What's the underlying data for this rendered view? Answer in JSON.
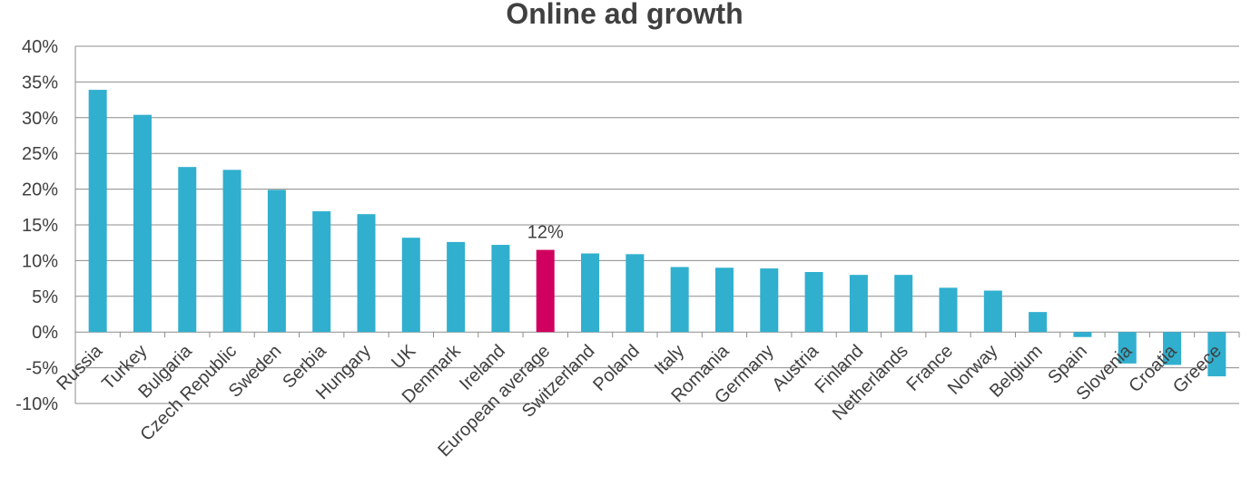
{
  "chart_data": {
    "type": "bar",
    "title": "Online ad growth",
    "xlabel": "",
    "ylabel": "",
    "ylim": [
      -10,
      40
    ],
    "yticks": [
      "-10%",
      "-5%",
      "0%",
      "5%",
      "10%",
      "15%",
      "20%",
      "25%",
      "30%",
      "35%",
      "40%"
    ],
    "grid": true,
    "categories": [
      "Russia",
      "Turkey",
      "Bulgaria",
      "Czech Republic",
      "Sweden",
      "Serbia",
      "Hungary",
      "UK",
      "Denmark",
      "Ireland",
      "European average",
      "Switzerland",
      "Poland",
      "Italy",
      "Romania",
      "Germany",
      "Austria",
      "Finland",
      "Netherlands",
      "France",
      "Norway",
      "Belgium",
      "Spain",
      "Slovenia",
      "Croatia",
      "Greece"
    ],
    "values": [
      33.9,
      30.4,
      23.1,
      22.7,
      19.9,
      16.9,
      16.5,
      13.2,
      12.6,
      12.2,
      11.5,
      11.0,
      10.9,
      9.1,
      9.0,
      8.9,
      8.4,
      8.0,
      8.0,
      6.2,
      5.8,
      2.8,
      -0.7,
      -4.4,
      -4.6,
      -6.2
    ],
    "highlight_index": 10,
    "annotation": "12%",
    "colors": {
      "bar": "#31AFCF",
      "highlight": "#D0005F"
    }
  }
}
